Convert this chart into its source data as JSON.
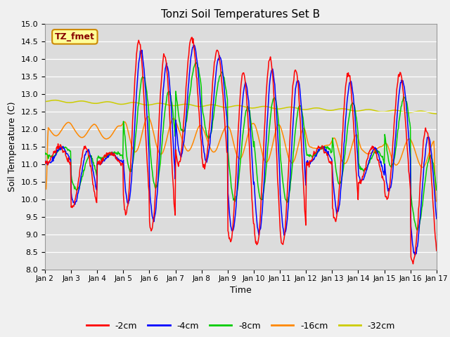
{
  "title": "Tonzi Soil Temperatures Set B",
  "xlabel": "Time",
  "ylabel": "Soil Temperature (C)",
  "ylim": [
    8.0,
    15.0
  ],
  "yticks": [
    8.0,
    8.5,
    9.0,
    9.5,
    10.0,
    10.5,
    11.0,
    11.5,
    12.0,
    12.5,
    13.0,
    13.5,
    14.0,
    14.5,
    15.0
  ],
  "colors": {
    "-2cm": "#ff0000",
    "-4cm": "#0000ff",
    "-8cm": "#00cc00",
    "-16cm": "#ff8800",
    "-32cm": "#cccc00"
  },
  "legend_label": "TZ_fmet",
  "legend_box_facecolor": "#ffff99",
  "legend_box_edgecolor": "#cc8800",
  "bg_color": "#dcdcdc",
  "xtick_labels": [
    "Jan 2",
    "Jan 3",
    "Jan 4",
    "Jan 5",
    "Jan 6",
    "Jan 7",
    "Jan 8",
    "Jan 9",
    "Jan 10",
    "Jan 11",
    "Jan 12",
    "Jan 13",
    "Jan 14",
    "Jan 15",
    "Jan 16",
    "Jan 17"
  ],
  "xtick_positions": [
    2,
    3,
    4,
    5,
    6,
    7,
    8,
    9,
    10,
    11,
    12,
    13,
    14,
    15,
    16,
    17
  ],
  "xlim": [
    2,
    17
  ]
}
